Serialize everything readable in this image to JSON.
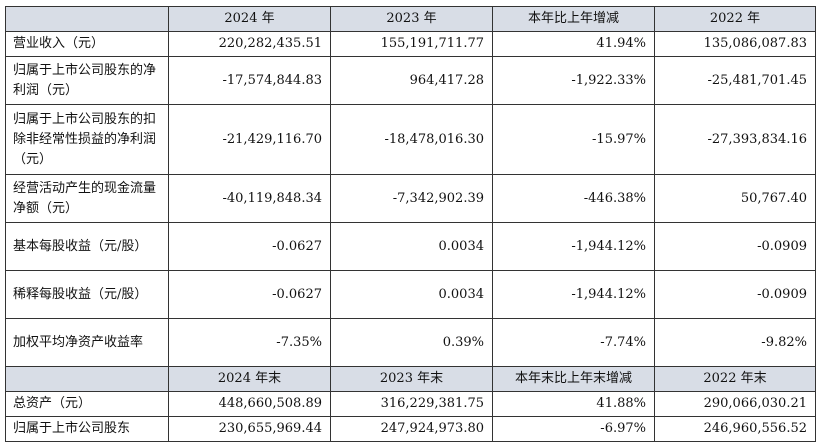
{
  "header_top": [
    "",
    "2024 年",
    "2023 年",
    "本年比上年增减",
    "2022 年"
  ],
  "rows_top": [
    {
      "label": "营业收入（元）",
      "cls": "h1",
      "values": [
        "220,282,435.51",
        "155,191,711.77",
        "41.94%",
        "135,086,087.83"
      ]
    },
    {
      "label": "归属于上市公司股东的净利润（元）",
      "cls": "h2",
      "values": [
        "-17,574,844.83",
        "964,417.28",
        "-1,922.33%",
        "-25,481,701.45"
      ]
    },
    {
      "label": "归属于上市公司股东的扣除非经常性损益的净利润（元）",
      "cls": "h3",
      "values": [
        "-21,429,116.70",
        "-18,478,016.30",
        "-15.97%",
        "-27,393,834.16"
      ]
    },
    {
      "label": "经营活动产生的现金流量净额（元）",
      "cls": "h2",
      "values": [
        "-40,119,848.34",
        "-7,342,902.39",
        "-446.38%",
        "50,767.40"
      ]
    },
    {
      "label": "基本每股收益（元/股）",
      "cls": "h2",
      "values": [
        "-0.0627",
        "0.0034",
        "-1,944.12%",
        "-0.0909"
      ]
    },
    {
      "label": "稀释每股收益（元/股）",
      "cls": "h2",
      "values": [
        "-0.0627",
        "0.0034",
        "-1,944.12%",
        "-0.0909"
      ]
    },
    {
      "label": "加权平均净资产收益率",
      "cls": "h2",
      "values": [
        "-7.35%",
        "0.39%",
        "-7.74%",
        "-9.82%"
      ]
    }
  ],
  "header_bottom": [
    "",
    "2024 年末",
    "2023 年末",
    "本年末比上年末增减",
    "2022 年末"
  ],
  "rows_bottom": [
    {
      "label": "总资产（元）",
      "cls": "h1",
      "values": [
        "448,660,508.89",
        "316,229,381.75",
        "41.88%",
        "290,066,030.21"
      ]
    },
    {
      "label": "归属于上市公司股东",
      "cls": "h1",
      "values": [
        "230,655,969.44",
        "247,924,973.80",
        "-6.97%",
        "246,960,556.52"
      ]
    }
  ]
}
